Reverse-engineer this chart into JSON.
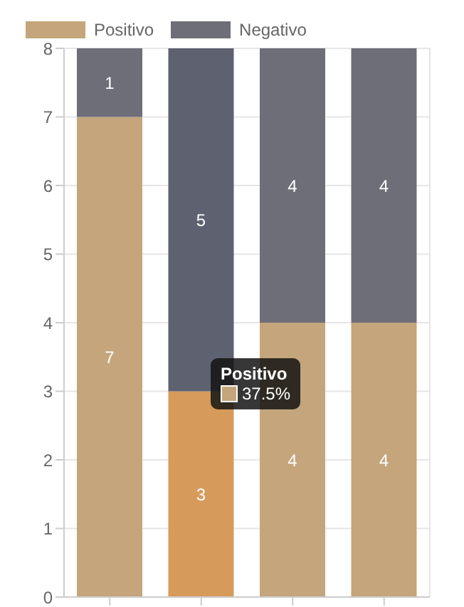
{
  "chart_data": {
    "type": "bar",
    "stacked": true,
    "categories": [
      null,
      null,
      null,
      null
    ],
    "series": [
      {
        "name": "Positivo",
        "color": "#c4a57c",
        "colors": [
          "#c4a57c",
          "#d69b5a",
          "#c4a57c",
          "#c4a57c"
        ],
        "values": [
          7,
          3,
          4,
          4
        ]
      },
      {
        "name": "Negativo",
        "color": "#6e6e78",
        "colors": [
          "#6e6e78",
          "#5d6170",
          "#6e6e78",
          "#6e6e78"
        ],
        "values": [
          1,
          5,
          4,
          4
        ]
      }
    ],
    "ylim": [
      0,
      8
    ],
    "yticks": [
      0,
      1,
      2,
      3,
      4,
      5,
      6,
      7,
      8
    ],
    "grid": true,
    "legend": "top left",
    "data_labels": true,
    "annotations": [
      "Positivo",
      "37.5%"
    ]
  }
}
